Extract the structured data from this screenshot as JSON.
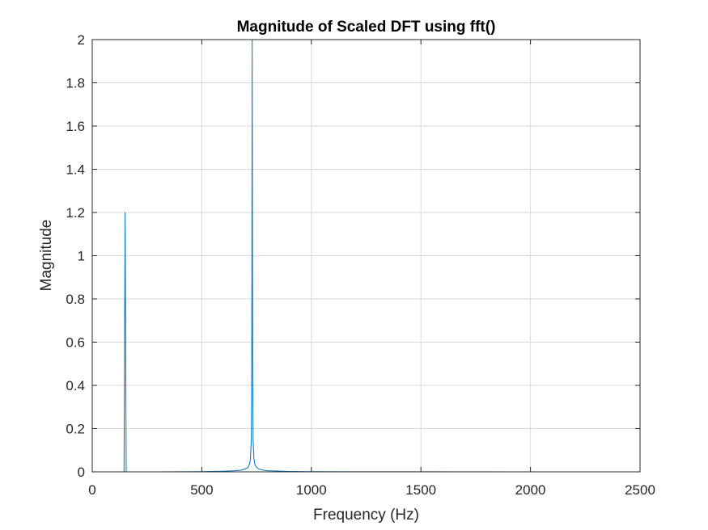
{
  "chart_data": {
    "type": "line",
    "title": "Magnitude of Scaled DFT using fft()",
    "xlabel": "Frequency (Hz)",
    "ylabel": "Magnitude",
    "xlim": [
      0,
      2500
    ],
    "ylim": [
      0,
      2
    ],
    "xticks": [
      0,
      500,
      1000,
      1500,
      2000,
      2500
    ],
    "yticks": [
      0,
      0.2,
      0.4,
      0.6,
      0.8,
      1,
      1.2,
      1.4,
      1.6,
      1.8,
      2
    ],
    "xtick_labels": [
      "0",
      "500",
      "1000",
      "1500",
      "2000",
      "2500"
    ],
    "ytick_labels": [
      "0",
      "0.2",
      "0.4",
      "0.6",
      "0.8",
      "1",
      "1.2",
      "1.4",
      "1.6",
      "1.8",
      "2"
    ],
    "grid": true,
    "colors": {
      "line": "#0072BD",
      "grid": "#d9d9d9",
      "axis": "#262626"
    },
    "series": [
      {
        "x": [
          0,
          140,
          145,
          150,
          155,
          160,
          165,
          300,
          500,
          600,
          650,
          680,
          700,
          710,
          718,
          722,
          726,
          728,
          729,
          730,
          731,
          732,
          734,
          738,
          742,
          750,
          760,
          780,
          800,
          900,
          1000,
          1200,
          1500,
          2000,
          2400
        ],
        "y": [
          0,
          0,
          0.0,
          1.2,
          0.0,
          0.0,
          0,
          0,
          0.001,
          0.003,
          0.005,
          0.008,
          0.014,
          0.02,
          0.035,
          0.06,
          0.15,
          0.5,
          1.2,
          2.0,
          1.2,
          0.5,
          0.15,
          0.06,
          0.035,
          0.02,
          0.013,
          0.008,
          0.005,
          0.002,
          0.001,
          0.0005,
          0.0003,
          0.0002,
          0.0001
        ]
      }
    ]
  }
}
